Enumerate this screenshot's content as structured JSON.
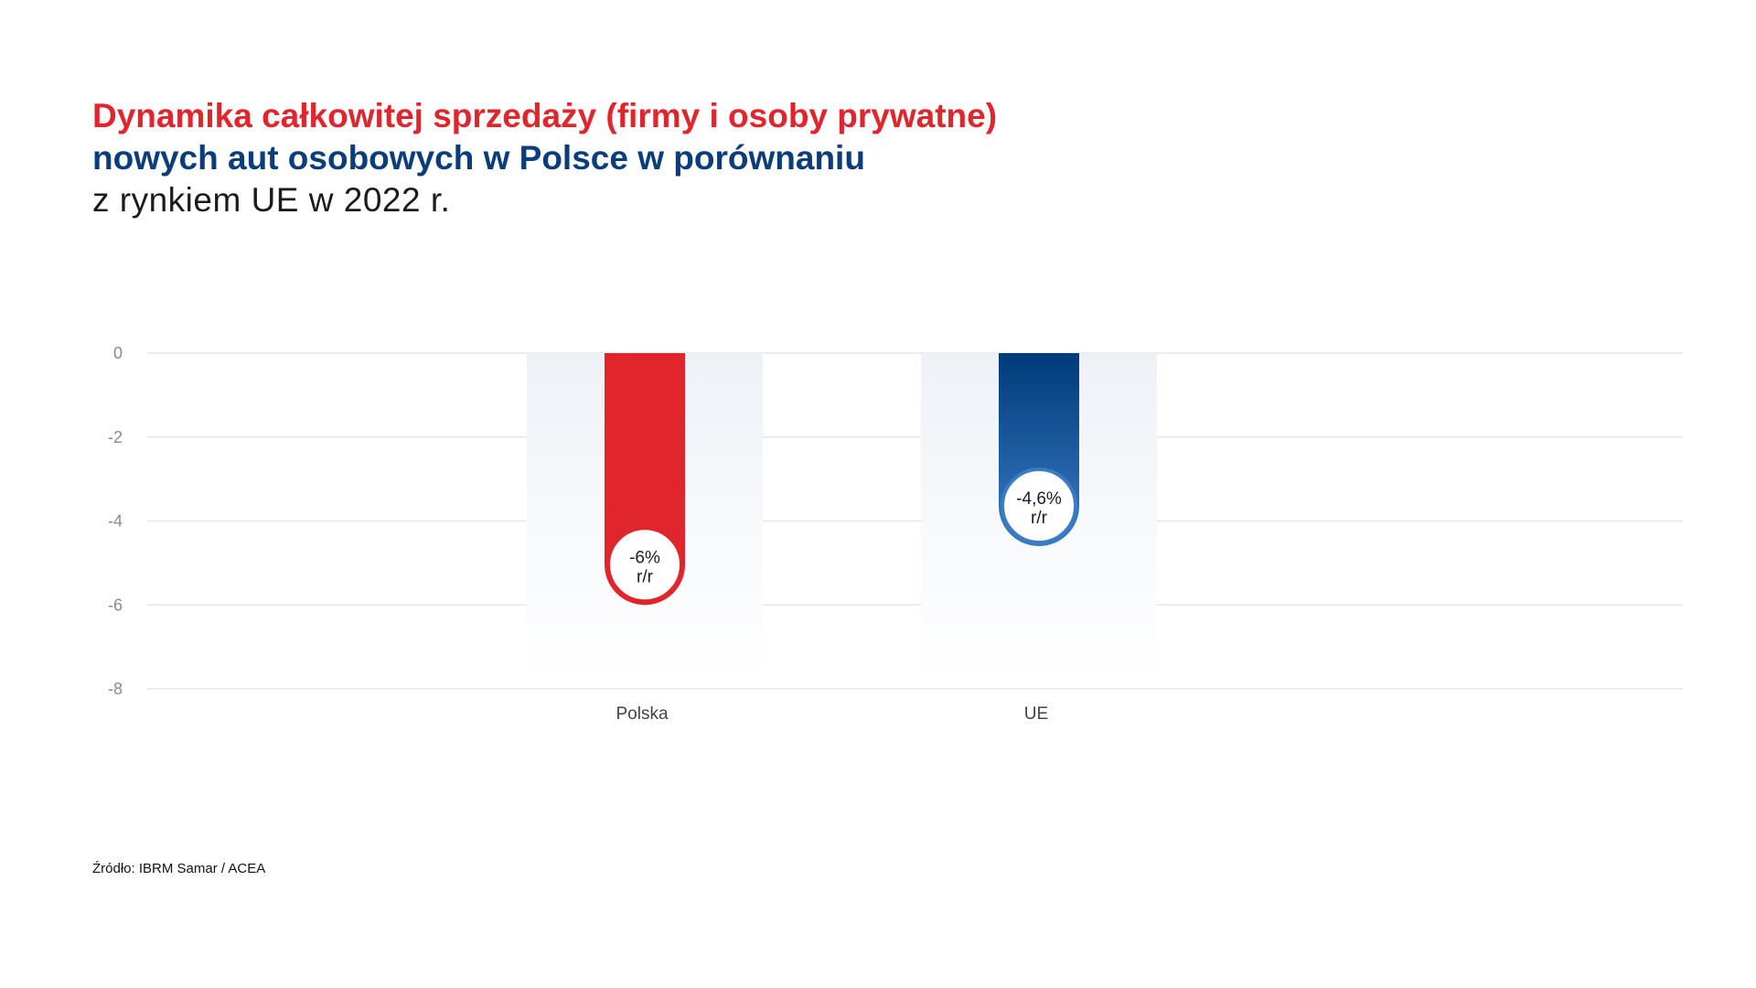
{
  "title": {
    "line1": "Dynamika całkowitej sprzedaży (firmy i osoby prywatne)",
    "line2": "nowych aut osobowych w Polsce w porównaniu",
    "line3": "z rynkiem UE w 2022 r."
  },
  "source": "Źródło: IBRM Samar / ACEA",
  "colors": {
    "polska": "#e0252d",
    "ue_top": "#003a7a",
    "ue_bottom": "#3a7cc4",
    "grid": "#e6e6e6",
    "tick": "#8a8a8a"
  },
  "chart_data": {
    "type": "bar",
    "categories": [
      "Polska",
      "UE"
    ],
    "values": [
      -6,
      -4.6
    ],
    "data_labels": [
      {
        "value": "-6%",
        "unit": "r/r"
      },
      {
        "value": "-4,6%",
        "unit": "r/r"
      }
    ],
    "y_ticks": [
      "0",
      "-2",
      "-4",
      "-6",
      "-8"
    ],
    "ylim": [
      -8,
      0
    ],
    "grid": true,
    "legend": false
  }
}
